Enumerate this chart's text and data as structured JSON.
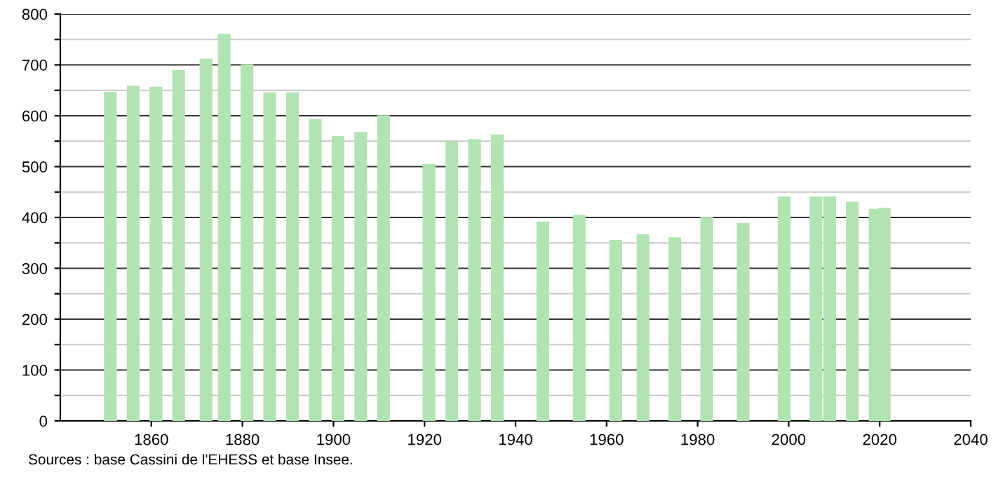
{
  "chart_data": {
    "type": "bar",
    "x": [
      1851,
      1856,
      1861,
      1866,
      1872,
      1876,
      1881,
      1886,
      1891,
      1896,
      1901,
      1906,
      1911,
      1921,
      1926,
      1931,
      1936,
      1946,
      1954,
      1962,
      1968,
      1975,
      1982,
      1990,
      1999,
      2006,
      2009,
      2014,
      2019,
      2021
    ],
    "values": [
      647,
      659,
      657,
      690,
      712,
      761,
      701,
      646,
      646,
      593,
      560,
      568,
      601,
      505,
      549,
      554,
      563,
      392,
      405,
      356,
      367,
      361,
      401,
      389,
      441,
      441,
      441,
      431,
      417,
      419
    ],
    "color": "#b2e3b2",
    "xlim": [
      1840,
      2040
    ],
    "xticks": [
      1860,
      1880,
      1900,
      1920,
      1940,
      1960,
      1980,
      2000,
      2020,
      2040
    ],
    "ylim": [
      0,
      800
    ],
    "yticks": [
      0,
      {
        "value": 50,
        "label": null
      },
      100,
      {
        "value": 150,
        "label": null
      },
      200,
      {
        "value": 250,
        "label": null
      },
      300,
      {
        "value": 350,
        "label": null
      },
      400,
      {
        "value": 450,
        "label": null
      },
      500,
      {
        "value": 550,
        "label": null
      },
      600,
      {
        "value": 650,
        "label": null
      },
      700,
      {
        "value": 750,
        "label": null
      },
      800
    ],
    "grid": "y",
    "annotations": [
      "Sources : base Cassini de l'EHESS et base Insee."
    ]
  }
}
